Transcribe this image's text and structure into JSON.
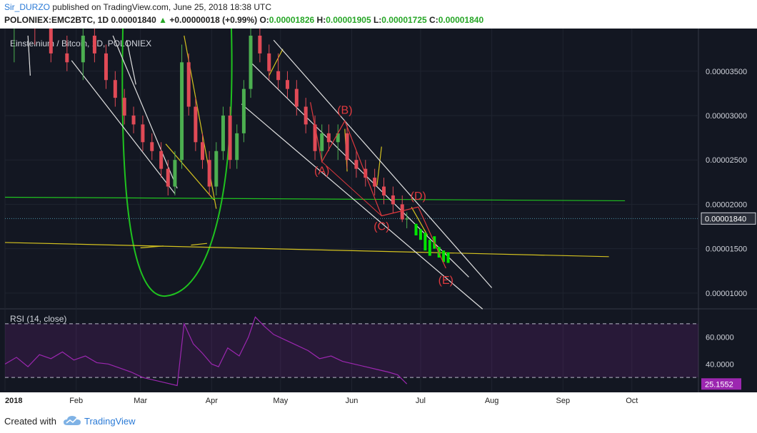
{
  "header": {
    "author": "Sir_DURZO",
    "published_text": "published on TradingView.com, June 25, 2018 18:38 UTC",
    "symbol": "POLONIEX:EMC2BTC, 1D",
    "last_price": "0.00001840",
    "change": "+0.00000018 (+0.99%)",
    "open_label": "O:",
    "open": "0.00001826",
    "high_label": "H:",
    "high": "0.00001905",
    "low_label": "L:",
    "low": "0.00001725",
    "close_label": "C:",
    "close": "0.00001840"
  },
  "footer": {
    "created_with": "Created with",
    "brand": "TradingView"
  },
  "colors": {
    "background": "#131722",
    "up_candle": "#4caf50",
    "down_candle": "#e04a56",
    "green_line": "#1fc21f",
    "yellow_line": "#d4c21f",
    "white_line": "#e0e0e0",
    "wave_red": "#e0393e",
    "rsi_line": "#9c27b0",
    "price_tag": "#2a2e39",
    "rsi_tag": "#9c27b0",
    "forecast_green": "#00e600"
  },
  "chart_data": {
    "type": "candlestick",
    "title": "Einsteinium / Bitcoin, 1D, POLONIEX",
    "y_ticks": [
      "0.00003500",
      "0.00003000",
      "0.00002500",
      "0.00002000",
      "0.00001500",
      "0.00001000"
    ],
    "y_tick_values": [
      3.5e-05,
      3e-05,
      2.5e-05,
      2e-05,
      1.5e-05,
      1e-05
    ],
    "y_range": [
      8.3e-06,
      3.9e-05
    ],
    "current_price_label": "0.00001840",
    "current_price": 1.84e-05,
    "x_ticks": [
      "2018",
      "Feb",
      "Mar",
      "Apr",
      "May",
      "Jun",
      "Jul",
      "Aug",
      "Sep",
      "Oct"
    ],
    "x_tick_dates": [
      "2018-01-01",
      "2018-02-01",
      "2018-03-01",
      "2018-04-01",
      "2018-05-01",
      "2018-06-01",
      "2018-07-01",
      "2018-08-01",
      "2018-09-01",
      "2018-10-01"
    ],
    "x_range": [
      "2018-01-01",
      "2018-10-30"
    ],
    "candles": [
      [
        "2018-01-05",
        4e-05,
        4.5e-05,
        3.6e-05,
        4.1e-05
      ],
      [
        "2018-01-14",
        4.1e-05,
        4.4e-05,
        3.8e-05,
        4e-05
      ],
      [
        "2018-01-21",
        4e-05,
        4.1e-05,
        3.6e-05,
        3.7e-05
      ],
      [
        "2018-01-28",
        3.7e-05,
        3.9e-05,
        3.5e-05,
        3.6e-05
      ],
      [
        "2018-02-04",
        3.6e-05,
        4e-05,
        3.4e-05,
        3.9e-05
      ],
      [
        "2018-02-09",
        3.9e-05,
        4e-05,
        3.6e-05,
        3.7e-05
      ],
      [
        "2018-02-14",
        3.7e-05,
        3.8e-05,
        3.3e-05,
        3.4e-05
      ],
      [
        "2018-02-18",
        3.4e-05,
        3.5e-05,
        3.1e-05,
        3.2e-05
      ],
      [
        "2018-02-22",
        3.2e-05,
        3.3e-05,
        2.9e-05,
        3e-05
      ],
      [
        "2018-02-26",
        3e-05,
        3.1e-05,
        2.8e-05,
        2.9e-05
      ],
      [
        "2018-03-02",
        2.9e-05,
        3e-05,
        2.6e-05,
        2.7e-05
      ],
      [
        "2018-03-06",
        2.7e-05,
        2.8e-05,
        2.5e-05,
        2.6e-05
      ],
      [
        "2018-03-10",
        2.6e-05,
        2.7e-05,
        2.3e-05,
        2.4e-05
      ],
      [
        "2018-03-13",
        2.4e-05,
        2.5e-05,
        2.1e-05,
        2.2e-05
      ],
      [
        "2018-03-16",
        2.2e-05,
        2.6e-05,
        2.1e-05,
        2.5e-05
      ],
      [
        "2018-03-19",
        2.5e-05,
        3.8e-05,
        2.4e-05,
        3.6e-05
      ],
      [
        "2018-03-22",
        3.6e-05,
        3.7e-05,
        3e-05,
        3.1e-05
      ],
      [
        "2018-03-25",
        3.1e-05,
        3.2e-05,
        2.6e-05,
        2.7e-05
      ],
      [
        "2018-03-28",
        2.7e-05,
        2.8e-05,
        2.4e-05,
        2.5e-05
      ],
      [
        "2018-03-31",
        2.5e-05,
        2.6e-05,
        2.1e-05,
        2.2e-05
      ],
      [
        "2018-04-03",
        2.2e-05,
        2.7e-05,
        2.1e-05,
        2.6e-05
      ],
      [
        "2018-04-06",
        2.6e-05,
        3.1e-05,
        2.5e-05,
        3e-05
      ],
      [
        "2018-04-09",
        3e-05,
        3.1e-05,
        2.4e-05,
        2.5e-05
      ],
      [
        "2018-04-12",
        2.5e-05,
        2.9e-05,
        2.4e-05,
        2.8e-05
      ],
      [
        "2018-04-15",
        2.8e-05,
        3.4e-05,
        2.7e-05,
        3.3e-05
      ],
      [
        "2018-04-18",
        3.3e-05,
        4.1e-05,
        3.2e-05,
        3.9e-05
      ],
      [
        "2018-04-22",
        3.9e-05,
        4e-05,
        3.6e-05,
        3.7e-05
      ],
      [
        "2018-04-26",
        3.7e-05,
        3.8e-05,
        3.4e-05,
        3.5e-05
      ],
      [
        "2018-04-30",
        3.5e-05,
        3.7e-05,
        3.3e-05,
        3.4e-05
      ],
      [
        "2018-05-04",
        3.4e-05,
        3.5e-05,
        3.2e-05,
        3.3e-05
      ],
      [
        "2018-05-08",
        3.3e-05,
        3.4e-05,
        3e-05,
        3.1e-05
      ],
      [
        "2018-05-12",
        3.1e-05,
        3.2e-05,
        2.8e-05,
        2.9e-05
      ],
      [
        "2018-05-16",
        2.9e-05,
        3e-05,
        2.5e-05,
        2.6e-05
      ],
      [
        "2018-05-19",
        2.6e-05,
        2.9e-05,
        2.5e-05,
        2.8e-05
      ],
      [
        "2018-05-22",
        2.8e-05,
        2.9e-05,
        2.6e-05,
        2.7e-05
      ],
      [
        "2018-05-26",
        2.7e-05,
        2.9e-05,
        2.5e-05,
        2.8e-05
      ],
      [
        "2018-05-30",
        2.8e-05,
        2.9e-05,
        2.4e-05,
        2.5e-05
      ],
      [
        "2018-06-03",
        2.5e-05,
        2.6e-05,
        2.3e-05,
        2.4e-05
      ],
      [
        "2018-06-07",
        2.4e-05,
        2.5e-05,
        2.2e-05,
        2.3e-05
      ],
      [
        "2018-06-11",
        2.3e-05,
        2.4e-05,
        2.1e-05,
        2.2e-05
      ],
      [
        "2018-06-15",
        2.2e-05,
        2.3e-05,
        2e-05,
        2.1e-05
      ],
      [
        "2018-06-19",
        2.1e-05,
        2.2e-05,
        1.9e-05,
        2e-05
      ],
      [
        "2018-06-23",
        2e-05,
        2.1e-05,
        1.8e-05,
        1.83e-05
      ],
      [
        "2018-06-25",
        1.83e-05,
        1.91e-05,
        1.73e-05,
        1.84e-05
      ]
    ],
    "forecast_bars": [
      [
        "2018-06-29",
        1.78e-05,
        1.65e-05
      ],
      [
        "2018-07-01",
        1.72e-05,
        1.6e-05
      ],
      [
        "2018-07-03",
        1.68e-05,
        1.48e-05
      ],
      [
        "2018-07-05",
        1.6e-05,
        1.42e-05
      ],
      [
        "2018-07-07",
        1.64e-05,
        1.5e-05
      ],
      [
        "2018-07-09",
        1.52e-05,
        1.4e-05
      ],
      [
        "2018-07-11",
        1.48e-05,
        1.35e-05
      ],
      [
        "2018-07-13",
        1.46e-05,
        1.34e-05
      ]
    ],
    "wave_labels": [
      {
        "label": "(A)",
        "date": "2018-05-19",
        "price": 2.48e-05
      },
      {
        "label": "(B)",
        "date": "2018-05-29",
        "price": 2.94e-05
      },
      {
        "label": "(C)",
        "date": "2018-06-14",
        "price": 1.87e-05
      },
      {
        "label": "(D)",
        "date": "2018-06-30",
        "price": 1.97e-05
      },
      {
        "label": "(E)",
        "date": "2018-07-12",
        "price": 1.28e-05
      }
    ],
    "wave_path": [
      [
        "2018-05-14",
        3.15e-05
      ],
      [
        "2018-05-19",
        2.48e-05
      ],
      [
        "2018-05-29",
        2.94e-05
      ],
      [
        "2018-06-14",
        1.87e-05
      ],
      [
        "2018-06-30",
        1.97e-05
      ],
      [
        "2018-07-12",
        1.28e-05
      ]
    ],
    "green_horizontal": [
      [
        "2018-01-01",
        2.08e-05
      ],
      [
        "2018-09-28",
        2.04e-05
      ]
    ],
    "yellow_horizontal": [
      [
        "2018-01-01",
        1.57e-05
      ],
      [
        "2018-09-21",
        1.41e-05
      ]
    ],
    "channel_lines": [
      [
        [
          "2018-04-28",
          3.85e-05
        ],
        [
          "2018-08-01",
          1.06e-05
        ]
      ],
      [
        [
          "2018-04-18",
          3.6e-05
        ],
        [
          "2018-07-22",
          1.18e-05
        ]
      ],
      [
        [
          "2018-04-14",
          3.13e-05
        ],
        [
          "2018-07-28",
          8.2e-06
        ]
      ]
    ],
    "rsi": {
      "label": "RSI (14, close)",
      "ticks": [
        "60.0000",
        "40.0000"
      ],
      "tick_values": [
        60,
        40
      ],
      "upper_band": 70,
      "lower_band": 30,
      "range": [
        20,
        80
      ],
      "current_label": "25.1552",
      "current": 25.1552,
      "values": [
        [
          "2018-01-01",
          40
        ],
        [
          "2018-01-06",
          45
        ],
        [
          "2018-01-11",
          38
        ],
        [
          "2018-01-16",
          47
        ],
        [
          "2018-01-21",
          44
        ],
        [
          "2018-01-26",
          49
        ],
        [
          "2018-01-31",
          43
        ],
        [
          "2018-02-05",
          46
        ],
        [
          "2018-02-10",
          41
        ],
        [
          "2018-02-15",
          40
        ],
        [
          "2018-02-20",
          37
        ],
        [
          "2018-02-25",
          34
        ],
        [
          "2018-03-02",
          30
        ],
        [
          "2018-03-07",
          28
        ],
        [
          "2018-03-12",
          26
        ],
        [
          "2018-03-17",
          24
        ],
        [
          "2018-03-20",
          70
        ],
        [
          "2018-03-24",
          55
        ],
        [
          "2018-03-28",
          48
        ],
        [
          "2018-04-01",
          40
        ],
        [
          "2018-04-04",
          38
        ],
        [
          "2018-04-08",
          52
        ],
        [
          "2018-04-13",
          46
        ],
        [
          "2018-04-17",
          60
        ],
        [
          "2018-04-20",
          75
        ],
        [
          "2018-04-24",
          68
        ],
        [
          "2018-04-28",
          62
        ],
        [
          "2018-05-03",
          58
        ],
        [
          "2018-05-08",
          54
        ],
        [
          "2018-05-13",
          50
        ],
        [
          "2018-05-18",
          44
        ],
        [
          "2018-05-23",
          46
        ],
        [
          "2018-05-28",
          42
        ],
        [
          "2018-06-02",
          40
        ],
        [
          "2018-06-07",
          38
        ],
        [
          "2018-06-12",
          36
        ],
        [
          "2018-06-17",
          34
        ],
        [
          "2018-06-21",
          32
        ],
        [
          "2018-06-25",
          25.2
        ]
      ]
    }
  }
}
